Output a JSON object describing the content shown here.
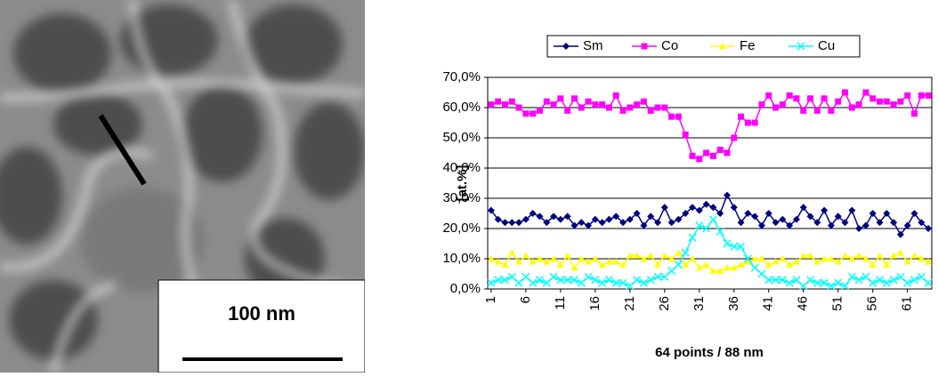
{
  "micrograph": {
    "scale_bar": "100 nm"
  },
  "chart_data": {
    "type": "line",
    "x_label": "64 points / 88 nm",
    "y_label": "[at.%]",
    "x": [
      1,
      2,
      3,
      4,
      5,
      6,
      7,
      8,
      9,
      10,
      11,
      12,
      13,
      14,
      15,
      16,
      17,
      18,
      19,
      20,
      21,
      22,
      23,
      24,
      25,
      26,
      27,
      28,
      29,
      30,
      31,
      32,
      33,
      34,
      35,
      36,
      37,
      38,
      39,
      40,
      41,
      42,
      43,
      44,
      45,
      46,
      47,
      48,
      49,
      50,
      51,
      52,
      53,
      54,
      55,
      56,
      57,
      58,
      59,
      60,
      61,
      62,
      63,
      64
    ],
    "xlim": [
      0.5,
      64.5
    ],
    "xticks": [
      1,
      6,
      11,
      16,
      21,
      26,
      31,
      36,
      41,
      46,
      51,
      56,
      61
    ],
    "ylim": [
      0,
      70
    ],
    "yticks": [
      {
        "value": 0,
        "label": "0,0%"
      },
      {
        "value": 10,
        "label": "10,0%"
      },
      {
        "value": 20,
        "label": "20,0%"
      },
      {
        "value": 30,
        "label": "30,0%"
      },
      {
        "value": 40,
        "label": "40,0%"
      },
      {
        "value": 50,
        "label": "50,0%"
      },
      {
        "value": 60,
        "label": "60,0%"
      },
      {
        "value": 70,
        "label": "70,0%"
      }
    ],
    "grid": true,
    "legend": "top",
    "series": [
      {
        "name": "Sm",
        "color": "#000080",
        "marker": "diamond",
        "values": [
          26,
          23,
          22,
          22,
          22,
          23,
          25,
          24,
          22,
          24,
          23,
          24,
          21,
          22,
          21,
          23,
          22,
          23,
          24,
          22,
          23,
          25,
          21,
          24,
          22,
          27,
          22,
          23,
          25,
          27,
          26,
          28,
          27,
          25,
          31,
          27,
          22,
          25,
          24,
          21,
          25,
          22,
          23,
          21,
          23,
          27,
          24,
          22,
          26,
          21,
          24,
          22,
          26,
          20,
          21,
          25,
          22,
          25,
          22,
          18,
          21,
          25,
          22,
          20
        ]
      },
      {
        "name": "Co",
        "color": "#ff00ff",
        "marker": "square",
        "values": [
          61,
          62,
          61,
          62,
          60,
          58,
          58,
          59,
          62,
          61,
          63,
          59,
          63,
          60,
          62,
          61,
          61,
          60,
          64,
          59,
          60,
          61,
          62,
          59,
          60,
          60,
          57,
          57,
          51,
          44,
          43,
          45,
          44,
          46,
          45,
          50,
          57,
          55,
          55,
          61,
          64,
          60,
          61,
          64,
          63,
          59,
          63,
          59,
          63,
          59,
          62,
          65,
          60,
          61,
          65,
          63,
          62,
          62,
          61,
          62,
          64,
          58,
          64,
          64
        ]
      },
      {
        "name": "Fe",
        "color": "#ffff00",
        "marker": "triangle",
        "values": [
          10,
          9,
          8,
          12,
          9,
          11,
          9,
          10,
          9,
          10,
          8,
          11,
          7,
          10,
          9,
          10,
          8,
          9,
          9,
          8,
          11,
          11,
          10,
          11,
          8,
          11,
          10,
          12,
          8,
          10,
          7,
          8,
          6,
          6,
          7,
          7,
          8,
          9,
          10,
          10,
          8,
          9,
          10,
          8,
          9,
          11,
          11,
          9,
          10,
          10,
          9,
          11,
          10,
          11,
          10,
          8,
          11,
          8,
          11,
          12,
          9,
          11,
          10,
          9
        ]
      },
      {
        "name": "Cu",
        "color": "#00ffff",
        "marker": "x",
        "values": [
          2,
          3,
          3,
          4,
          2,
          4,
          2,
          3,
          2,
          4,
          3,
          3,
          3,
          2,
          4,
          3,
          2,
          3,
          2,
          2,
          1,
          3,
          2,
          3,
          4,
          4,
          6,
          8,
          12,
          17,
          21,
          20,
          23,
          19,
          15,
          14,
          14,
          10,
          7,
          5,
          3,
          3,
          3,
          2,
          3,
          1,
          3,
          2,
          2,
          1,
          2,
          1,
          4,
          3,
          4,
          2,
          3,
          2,
          3,
          4,
          2,
          3,
          4,
          2
        ]
      }
    ]
  }
}
